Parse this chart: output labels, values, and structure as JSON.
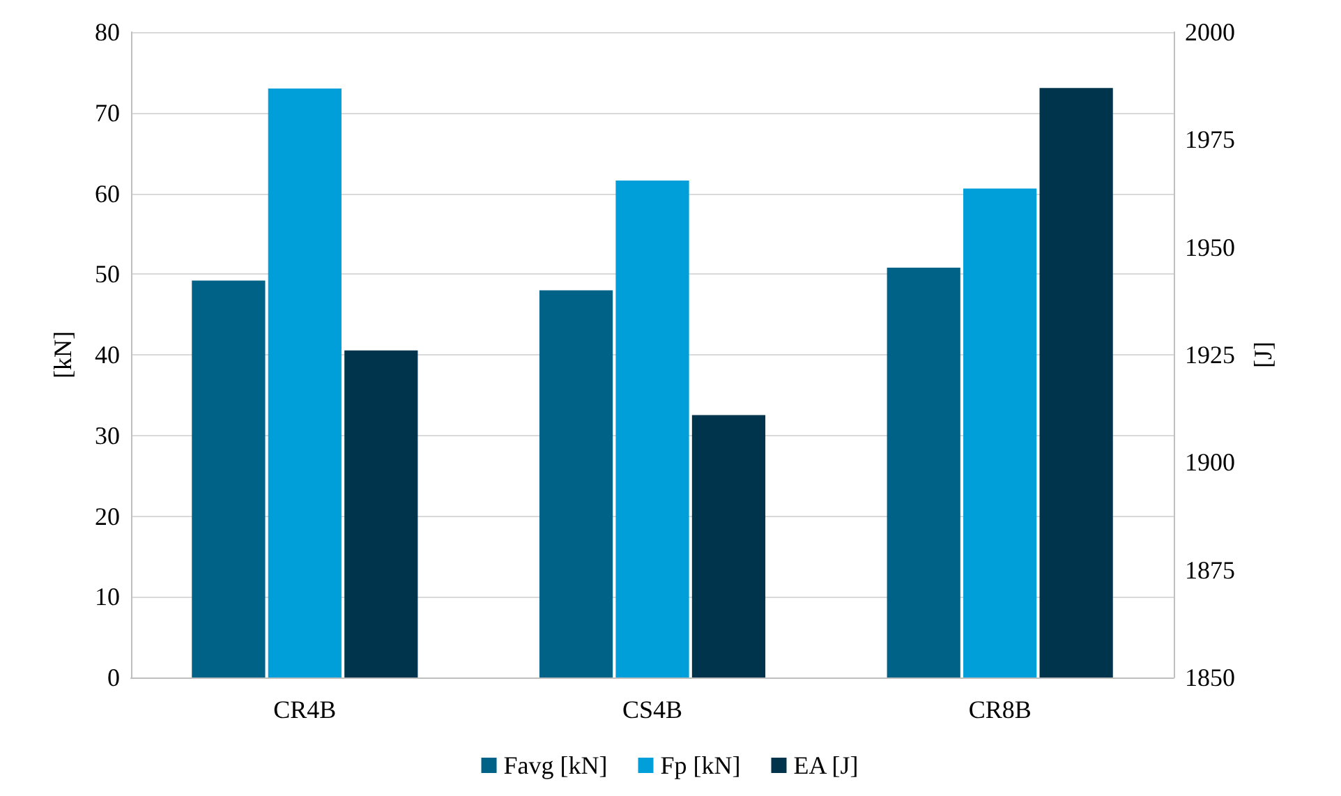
{
  "chart_data": {
    "type": "bar",
    "ylabel": "[kN]",
    "y2label": "[J]",
    "categories": [
      "CR4B",
      "CS4B",
      "CR8B"
    ],
    "series": [
      {
        "name": "Favg [kN]",
        "color": "#006287",
        "values": [
          49.2,
          48.0,
          50.8
        ]
      },
      {
        "name": "Fp [kN]",
        "color": "#009fd9",
        "values": [
          73.0,
          61.6,
          60.6
        ]
      },
      {
        "name": "EA [J]",
        "color": "#00344c",
        "values": [
          1926,
          1911,
          1987
        ],
        "axis": "y2"
      }
    ],
    "ylim": [
      0,
      80
    ],
    "yticks": [
      0,
      10,
      20,
      30,
      40,
      50,
      60,
      70,
      80
    ],
    "y2lim": [
      1850,
      2000
    ],
    "y2ticks": [
      1850,
      1875,
      1900,
      1925,
      1950,
      1975,
      2000
    ],
    "grid": "y",
    "legend": "bottom"
  }
}
